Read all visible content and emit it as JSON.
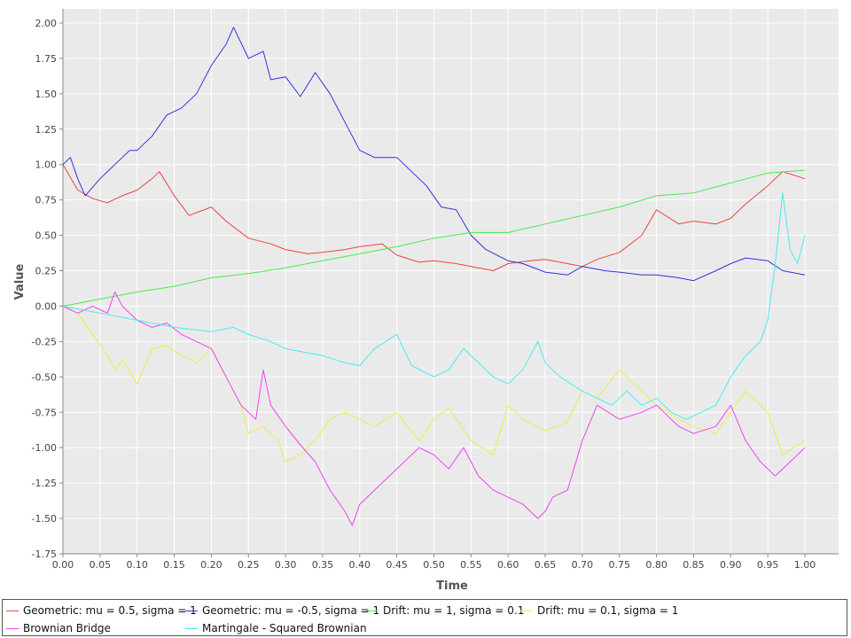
{
  "chart_data": {
    "type": "line",
    "title": "",
    "xlabel": "Time",
    "ylabel": "Value",
    "xlim": [
      0,
      1
    ],
    "ylim": [
      -1.75,
      2.1
    ],
    "xticks": [
      "0.00",
      "0.05",
      "0.10",
      "0.15",
      "0.20",
      "0.25",
      "0.30",
      "0.35",
      "0.40",
      "0.45",
      "0.50",
      "0.55",
      "0.60",
      "0.65",
      "0.70",
      "0.75",
      "0.80",
      "0.85",
      "0.90",
      "0.95",
      "1.00"
    ],
    "yticks": [
      "-1.75",
      "-1.50",
      "-1.25",
      "-1.00",
      "-0.75",
      "-0.50",
      "-0.25",
      "0.00",
      "0.25",
      "0.50",
      "0.75",
      "1.00",
      "1.25",
      "1.50",
      "1.75",
      "2.00"
    ],
    "grid": true,
    "background": "#eaeaea",
    "legend_position": "bottom",
    "series": [
      {
        "name": "Geometric: mu = 0.5, sigma = 1",
        "color": "#ee4444",
        "x": [
          0,
          0.02,
          0.04,
          0.06,
          0.08,
          0.1,
          0.12,
          0.13,
          0.15,
          0.17,
          0.2,
          0.22,
          0.25,
          0.28,
          0.3,
          0.33,
          0.35,
          0.38,
          0.4,
          0.43,
          0.45,
          0.48,
          0.5,
          0.53,
          0.55,
          0.58,
          0.6,
          0.63,
          0.65,
          0.68,
          0.7,
          0.72,
          0.75,
          0.78,
          0.8,
          0.83,
          0.85,
          0.88,
          0.9,
          0.92,
          0.95,
          0.97,
          1.0
        ],
        "y": [
          1.0,
          0.82,
          0.76,
          0.73,
          0.78,
          0.82,
          0.9,
          0.95,
          0.78,
          0.64,
          0.7,
          0.6,
          0.48,
          0.44,
          0.4,
          0.37,
          0.38,
          0.4,
          0.42,
          0.44,
          0.36,
          0.31,
          0.32,
          0.3,
          0.28,
          0.25,
          0.3,
          0.32,
          0.33,
          0.3,
          0.28,
          0.33,
          0.38,
          0.5,
          0.68,
          0.58,
          0.6,
          0.58,
          0.62,
          0.72,
          0.85,
          0.95,
          0.9
        ]
      },
      {
        "name": "Geometric: mu = -0.5, sigma = 1",
        "color": "#3333dd",
        "x": [
          0,
          0.01,
          0.02,
          0.03,
          0.05,
          0.07,
          0.09,
          0.1,
          0.12,
          0.14,
          0.16,
          0.18,
          0.2,
          0.22,
          0.23,
          0.25,
          0.27,
          0.28,
          0.3,
          0.32,
          0.34,
          0.36,
          0.38,
          0.4,
          0.42,
          0.45,
          0.47,
          0.49,
          0.51,
          0.53,
          0.55,
          0.57,
          0.6,
          0.62,
          0.65,
          0.68,
          0.7,
          0.73,
          0.75,
          0.78,
          0.8,
          0.83,
          0.85,
          0.88,
          0.9,
          0.92,
          0.95,
          0.97,
          1.0
        ],
        "y": [
          1.0,
          1.05,
          0.9,
          0.78,
          0.9,
          1.0,
          1.1,
          1.1,
          1.2,
          1.35,
          1.4,
          1.5,
          1.7,
          1.85,
          1.97,
          1.75,
          1.8,
          1.6,
          1.62,
          1.48,
          1.65,
          1.5,
          1.3,
          1.1,
          1.05,
          1.05,
          0.95,
          0.85,
          0.7,
          0.68,
          0.5,
          0.4,
          0.32,
          0.3,
          0.24,
          0.22,
          0.28,
          0.25,
          0.24,
          0.22,
          0.22,
          0.2,
          0.18,
          0.25,
          0.3,
          0.34,
          0.32,
          0.25,
          0.22
        ]
      },
      {
        "name": "Drift: mu = 1, sigma = 0.1",
        "color": "#44ee44",
        "x": [
          0,
          0.05,
          0.1,
          0.15,
          0.2,
          0.25,
          0.3,
          0.35,
          0.4,
          0.45,
          0.5,
          0.55,
          0.6,
          0.65,
          0.7,
          0.75,
          0.8,
          0.85,
          0.9,
          0.95,
          1.0
        ],
        "y": [
          0.0,
          0.05,
          0.1,
          0.14,
          0.2,
          0.23,
          0.27,
          0.32,
          0.37,
          0.42,
          0.48,
          0.52,
          0.52,
          0.58,
          0.64,
          0.7,
          0.78,
          0.8,
          0.87,
          0.94,
          0.96
        ]
      },
      {
        "name": "Drift: mu = 0.1, sigma = 1",
        "color": "#eeee44",
        "x": [
          0,
          0.02,
          0.04,
          0.06,
          0.07,
          0.08,
          0.1,
          0.12,
          0.14,
          0.16,
          0.18,
          0.2,
          0.22,
          0.24,
          0.25,
          0.27,
          0.29,
          0.3,
          0.32,
          0.34,
          0.36,
          0.38,
          0.4,
          0.42,
          0.45,
          0.48,
          0.5,
          0.52,
          0.55,
          0.58,
          0.6,
          0.62,
          0.65,
          0.68,
          0.7,
          0.72,
          0.75,
          0.78,
          0.8,
          0.83,
          0.85,
          0.88,
          0.9,
          0.92,
          0.95,
          0.97,
          1.0
        ],
        "y": [
          0.0,
          -0.05,
          -0.2,
          -0.35,
          -0.45,
          -0.38,
          -0.55,
          -0.3,
          -0.28,
          -0.35,
          -0.4,
          -0.3,
          -0.5,
          -0.7,
          -0.9,
          -0.85,
          -0.95,
          -1.1,
          -1.05,
          -0.95,
          -0.8,
          -0.75,
          -0.8,
          -0.85,
          -0.75,
          -0.95,
          -0.8,
          -0.72,
          -0.95,
          -1.05,
          -0.7,
          -0.8,
          -0.88,
          -0.82,
          -0.6,
          -0.65,
          -0.45,
          -0.6,
          -0.7,
          -0.8,
          -0.85,
          -0.9,
          -0.75,
          -0.6,
          -0.75,
          -1.05,
          -0.95
        ]
      },
      {
        "name": "Brownian Bridge",
        "color": "#ee44ee",
        "x": [
          0,
          0.02,
          0.04,
          0.06,
          0.07,
          0.08,
          0.1,
          0.12,
          0.14,
          0.16,
          0.18,
          0.2,
          0.22,
          0.24,
          0.26,
          0.27,
          0.28,
          0.3,
          0.32,
          0.34,
          0.36,
          0.38,
          0.39,
          0.4,
          0.42,
          0.44,
          0.46,
          0.48,
          0.5,
          0.52,
          0.54,
          0.56,
          0.58,
          0.6,
          0.62,
          0.64,
          0.65,
          0.66,
          0.68,
          0.7,
          0.72,
          0.75,
          0.78,
          0.8,
          0.83,
          0.85,
          0.88,
          0.9,
          0.92,
          0.94,
          0.96,
          0.98,
          1.0
        ],
        "y": [
          0.0,
          -0.05,
          0.0,
          -0.05,
          0.1,
          0.0,
          -0.1,
          -0.15,
          -0.12,
          -0.2,
          -0.25,
          -0.3,
          -0.5,
          -0.7,
          -0.8,
          -0.45,
          -0.7,
          -0.85,
          -0.98,
          -1.1,
          -1.3,
          -1.45,
          -1.55,
          -1.4,
          -1.3,
          -1.2,
          -1.1,
          -1.0,
          -1.05,
          -1.15,
          -1.0,
          -1.2,
          -1.3,
          -1.35,
          -1.4,
          -1.5,
          -1.45,
          -1.35,
          -1.3,
          -0.95,
          -0.7,
          -0.8,
          -0.75,
          -0.7,
          -0.85,
          -0.9,
          -0.85,
          -0.7,
          -0.95,
          -1.1,
          -1.2,
          -1.1,
          -1.0
        ]
      },
      {
        "name": "Martingale - Squared Brownian",
        "color": "#44eeee",
        "x": [
          0,
          0.05,
          0.1,
          0.15,
          0.2,
          0.23,
          0.25,
          0.28,
          0.3,
          0.35,
          0.38,
          0.4,
          0.42,
          0.45,
          0.47,
          0.5,
          0.52,
          0.54,
          0.56,
          0.58,
          0.6,
          0.62,
          0.64,
          0.65,
          0.67,
          0.7,
          0.72,
          0.74,
          0.76,
          0.78,
          0.8,
          0.82,
          0.84,
          0.86,
          0.88,
          0.9,
          0.92,
          0.94,
          0.95,
          0.96,
          0.97,
          0.98,
          0.99,
          1.0
        ],
        "y": [
          0.0,
          -0.05,
          -0.1,
          -0.15,
          -0.18,
          -0.15,
          -0.2,
          -0.25,
          -0.3,
          -0.35,
          -0.4,
          -0.42,
          -0.3,
          -0.2,
          -0.42,
          -0.5,
          -0.45,
          -0.3,
          -0.4,
          -0.5,
          -0.55,
          -0.45,
          -0.25,
          -0.4,
          -0.5,
          -0.6,
          -0.65,
          -0.7,
          -0.6,
          -0.7,
          -0.65,
          -0.75,
          -0.8,
          -0.75,
          -0.7,
          -0.5,
          -0.35,
          -0.25,
          -0.1,
          0.3,
          0.8,
          0.4,
          0.3,
          0.5
        ]
      }
    ]
  }
}
